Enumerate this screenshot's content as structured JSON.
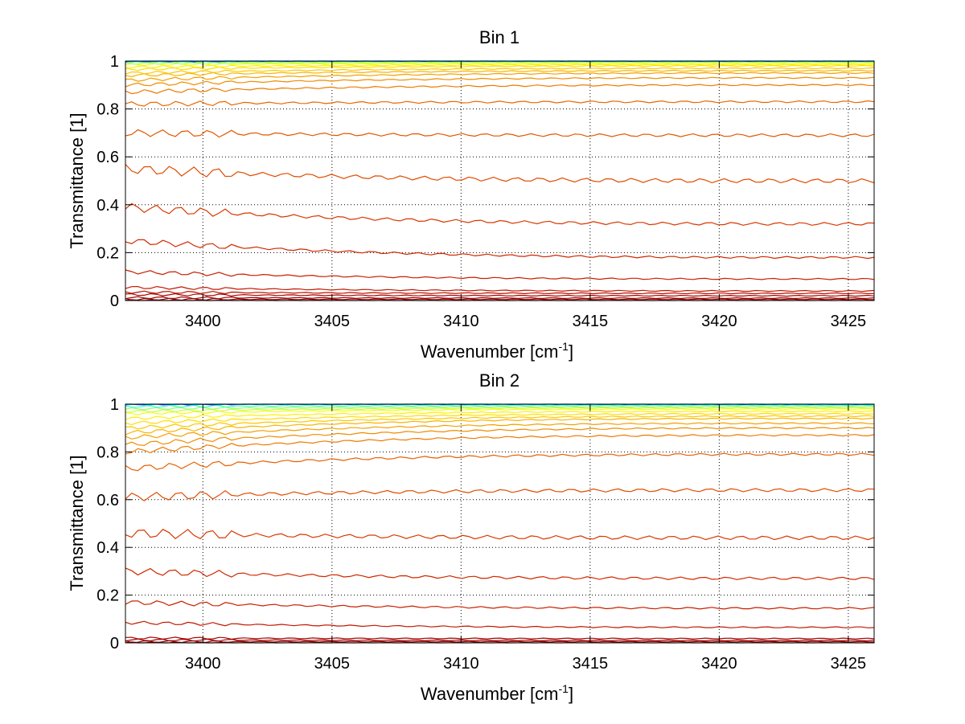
{
  "chart_data": [
    {
      "type": "line",
      "title": "Bin 1",
      "xlabel": "Wavenumber [cm",
      "xlabel_sup": "-1",
      "xlabel_end": "]",
      "ylabel": "Transmittance [1]",
      "xlim": [
        3397,
        3426
      ],
      "ylim": [
        0,
        1
      ],
      "xticks": [
        3400,
        3405,
        3410,
        3415,
        3420,
        3425
      ],
      "yticks": [
        0,
        0.2,
        0.4,
        0.6,
        0.8,
        1
      ],
      "grid": true,
      "series": [
        {
          "color": "#7f0000",
          "values": [
            0.0,
            0.0
          ]
        },
        {
          "color": "#8c0000",
          "values": [
            0.005,
            0.005
          ]
        },
        {
          "color": "#9a0000",
          "values": [
            0.012,
            0.01
          ]
        },
        {
          "color": "#a80500",
          "values": [
            0.025,
            0.02
          ]
        },
        {
          "color": "#b81000",
          "values": [
            0.035,
            0.03
          ]
        },
        {
          "color": "#c01800",
          "values": [
            0.055,
            0.04
          ]
        },
        {
          "color": "#c82000",
          "values": [
            0.12,
            0.09
          ]
        },
        {
          "color": "#d02800",
          "values": [
            0.25,
            0.18
          ]
        },
        {
          "color": "#d83800",
          "values": [
            0.39,
            0.32
          ]
        },
        {
          "color": "#e04c00",
          "values": [
            0.55,
            0.5
          ]
        },
        {
          "color": "#e05800",
          "values": [
            0.7,
            0.69
          ]
        },
        {
          "color": "#e86800",
          "values": [
            0.82,
            0.83
          ]
        },
        {
          "color": "#ee7a00",
          "values": [
            0.87,
            0.9
          ]
        },
        {
          "color": "#f08c00",
          "values": [
            0.9,
            0.93
          ]
        },
        {
          "color": "#f4a000",
          "values": [
            0.92,
            0.95
          ]
        },
        {
          "color": "#f8b400",
          "values": [
            0.94,
            0.96
          ]
        },
        {
          "color": "#fcc800",
          "values": [
            0.95,
            0.97
          ]
        },
        {
          "color": "#ffdc00",
          "values": [
            0.965,
            0.98
          ]
        },
        {
          "color": "#fff000",
          "values": [
            0.975,
            0.985
          ]
        },
        {
          "color": "#f0ff10",
          "values": [
            0.985,
            0.99
          ]
        },
        {
          "color": "#c8ff38",
          "values": [
            0.99,
            0.995
          ]
        },
        {
          "color": "#90ff70",
          "values": [
            0.995,
            0.997
          ]
        },
        {
          "color": "#40ffc0",
          "values": [
            0.998,
            0.999
          ]
        },
        {
          "color": "#00e0ff",
          "values": [
            1.0,
            1.0
          ]
        },
        {
          "color": "#0060ff",
          "values": [
            1.0,
            1.0
          ]
        }
      ]
    },
    {
      "type": "line",
      "title": "Bin 2",
      "xlabel": "Wavenumber [cm",
      "xlabel_sup": "-1",
      "xlabel_end": "]",
      "ylabel": "Transmittance [1]",
      "xlim": [
        3397,
        3426
      ],
      "ylim": [
        0,
        1
      ],
      "xticks": [
        3400,
        3405,
        3410,
        3415,
        3420,
        3425
      ],
      "yticks": [
        0,
        0.2,
        0.4,
        0.6,
        0.8,
        1
      ],
      "grid": true,
      "series": [
        {
          "color": "#7f0000",
          "values": [
            0.0,
            0.0
          ]
        },
        {
          "color": "#8c0000",
          "values": [
            0.005,
            0.005
          ]
        },
        {
          "color": "#9a0000",
          "values": [
            0.012,
            0.01
          ]
        },
        {
          "color": "#a80500",
          "values": [
            0.02,
            0.018
          ]
        },
        {
          "color": "#c01800",
          "values": [
            0.085,
            0.065
          ]
        },
        {
          "color": "#c82000",
          "values": [
            0.17,
            0.145
          ]
        },
        {
          "color": "#d02800",
          "values": [
            0.3,
            0.27
          ]
        },
        {
          "color": "#d83800",
          "values": [
            0.46,
            0.44
          ]
        },
        {
          "color": "#e04c00",
          "values": [
            0.61,
            0.64
          ]
        },
        {
          "color": "#e86000",
          "values": [
            0.73,
            0.79
          ]
        },
        {
          "color": "#ee7a00",
          "values": [
            0.8,
            0.87
          ]
        },
        {
          "color": "#f08c00",
          "values": [
            0.83,
            0.9
          ]
        },
        {
          "color": "#f4a000",
          "values": [
            0.86,
            0.92
          ]
        },
        {
          "color": "#f8b400",
          "values": [
            0.88,
            0.94
          ]
        },
        {
          "color": "#fcc800",
          "values": [
            0.9,
            0.95
          ]
        },
        {
          "color": "#ffdc00",
          "values": [
            0.92,
            0.96
          ]
        },
        {
          "color": "#fff000",
          "values": [
            0.94,
            0.97
          ]
        },
        {
          "color": "#f0ff10",
          "values": [
            0.96,
            0.98
          ]
        },
        {
          "color": "#c8ff38",
          "values": [
            0.97,
            0.985
          ]
        },
        {
          "color": "#90ff70",
          "values": [
            0.98,
            0.99
          ]
        },
        {
          "color": "#40ffc0",
          "values": [
            0.99,
            0.995
          ]
        },
        {
          "color": "#00e0ff",
          "values": [
            1.0,
            1.0
          ]
        },
        {
          "color": "#0060ff",
          "values": [
            1.0,
            1.0
          ]
        }
      ]
    }
  ]
}
